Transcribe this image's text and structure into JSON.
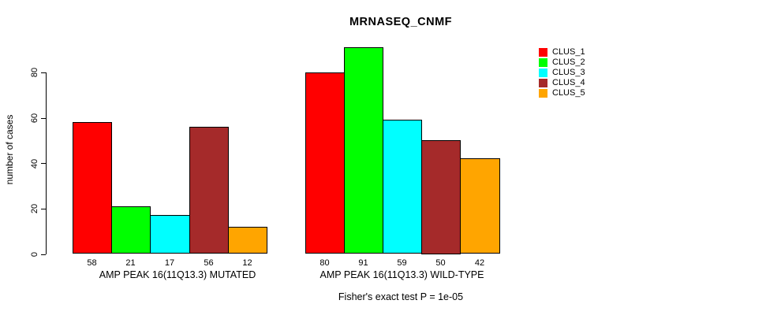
{
  "title": "MRNASEQ_CNMF",
  "footer": "Fisher's exact test P = 1e-05",
  "chart_data": {
    "type": "bar",
    "title": "MRNASEQ_CNMF",
    "ylabel": "number of cases",
    "xlabel": "",
    "annotation": "Fisher's exact test P = 1e-05",
    "ylim": [
      0,
      93
    ],
    "yticks": [
      0,
      20,
      40,
      60,
      80
    ],
    "grid": false,
    "legend_position": "top-right-inside",
    "categories": [
      "AMP PEAK 16(11Q13.3) MUTATED",
      "AMP PEAK 16(11Q13.3) WILD-TYPE"
    ],
    "series": [
      {
        "name": "CLUS_1",
        "color": "#FF0000",
        "values": [
          58,
          80
        ]
      },
      {
        "name": "CLUS_2",
        "color": "#00FF00",
        "values": [
          21,
          91
        ]
      },
      {
        "name": "CLUS_3",
        "color": "#00FFFF",
        "values": [
          17,
          59
        ]
      },
      {
        "name": "CLUS_4",
        "color": "#A52A2A",
        "values": [
          56,
          50
        ]
      },
      {
        "name": "CLUS_5",
        "color": "#FFA500",
        "values": [
          12,
          42
        ]
      }
    ],
    "bar_value_labels": [
      [
        58,
        21,
        17,
        56,
        12
      ],
      [
        80,
        91,
        59,
        50,
        42
      ]
    ]
  }
}
